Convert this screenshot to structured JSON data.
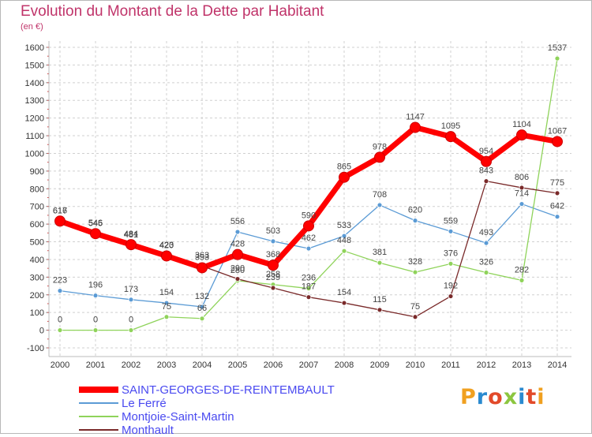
{
  "header": {
    "title": "Evolution du Montant de la Dette par Habitant",
    "unit": "(en €)"
  },
  "colors": {
    "grid": "#d0d0d0",
    "axis_text": "#333333",
    "title": "#c0346a",
    "legend_text": "#4a4af0"
  },
  "chart_data": {
    "type": "line",
    "title": "Evolution du Montant de la Dette par Habitant",
    "subtitle": "(en €)",
    "x": [
      "2000",
      "2001",
      "2002",
      "2003",
      "2004",
      "2005",
      "2006",
      "2007",
      "2008",
      "2009",
      "2010",
      "2011",
      "2012",
      "2013",
      "2014"
    ],
    "ylim": [
      -100,
      1600
    ],
    "yticks": [
      -100,
      0,
      100,
      200,
      300,
      400,
      500,
      600,
      700,
      800,
      900,
      1000,
      1100,
      1200,
      1300,
      1400,
      1500,
      1600
    ],
    "grid": "dashed horizontal and vertical",
    "legend_position": "bottom-left",
    "series": [
      {
        "name": "SAINT-GEORGES-DE-REINTEMBAULT",
        "color": "#ff0000",
        "values": [
          617,
          546,
          484,
          420,
          353,
          428,
          368,
          590,
          865,
          978,
          1147,
          1095,
          954,
          1104,
          1067
        ],
        "labels": [
          "617",
          "546",
          "484",
          "420",
          "353",
          "428",
          "368",
          "590",
          "865",
          "978",
          "1147",
          "1095",
          "954",
          "1104",
          "1067"
        ]
      },
      {
        "name": "Le Ferré",
        "color": "#5b9bd5",
        "values": [
          223,
          196,
          173,
          154,
          132,
          556,
          503,
          462,
          533,
          708,
          620,
          559,
          493,
          714,
          642
        ],
        "labels": [
          "223",
          "196",
          "173",
          "154",
          "132",
          "556",
          "503",
          "462",
          "533",
          "708",
          "620",
          "559",
          "493",
          "714",
          "642"
        ]
      },
      {
        "name": "Montjoie-Saint-Martin",
        "color": "#8fd35a",
        "values": [
          0,
          0,
          0,
          75,
          66,
          280,
          258,
          236,
          448,
          381,
          328,
          376,
          326,
          282,
          1537
        ],
        "labels": [
          "0",
          "0",
          "0",
          "75",
          "66",
          "280",
          "258",
          "236",
          "448",
          "381",
          "328",
          "376",
          "326",
          "282",
          "1537"
        ]
      },
      {
        "name": "Monthault",
        "color": "#7a2a2a",
        "values": [
          616,
          545,
          481,
          423,
          363,
          290,
          239,
          187,
          154,
          115,
          75,
          192,
          843,
          806,
          775
        ],
        "labels": [
          "616",
          "545",
          "481",
          "423",
          "363",
          "290",
          "239",
          "187",
          "154",
          "115",
          "75",
          "192",
          "843",
          "806",
          "775"
        ]
      }
    ]
  },
  "logo": {
    "letters": [
      "P",
      "r",
      "o",
      "x",
      "i",
      "t",
      "i"
    ],
    "colors": [
      "#f0a020",
      "#2a8ad0",
      "#e24a2a",
      "#8cc63f",
      "#2a8ad0",
      "#e24a2a",
      "#f0a020"
    ]
  }
}
